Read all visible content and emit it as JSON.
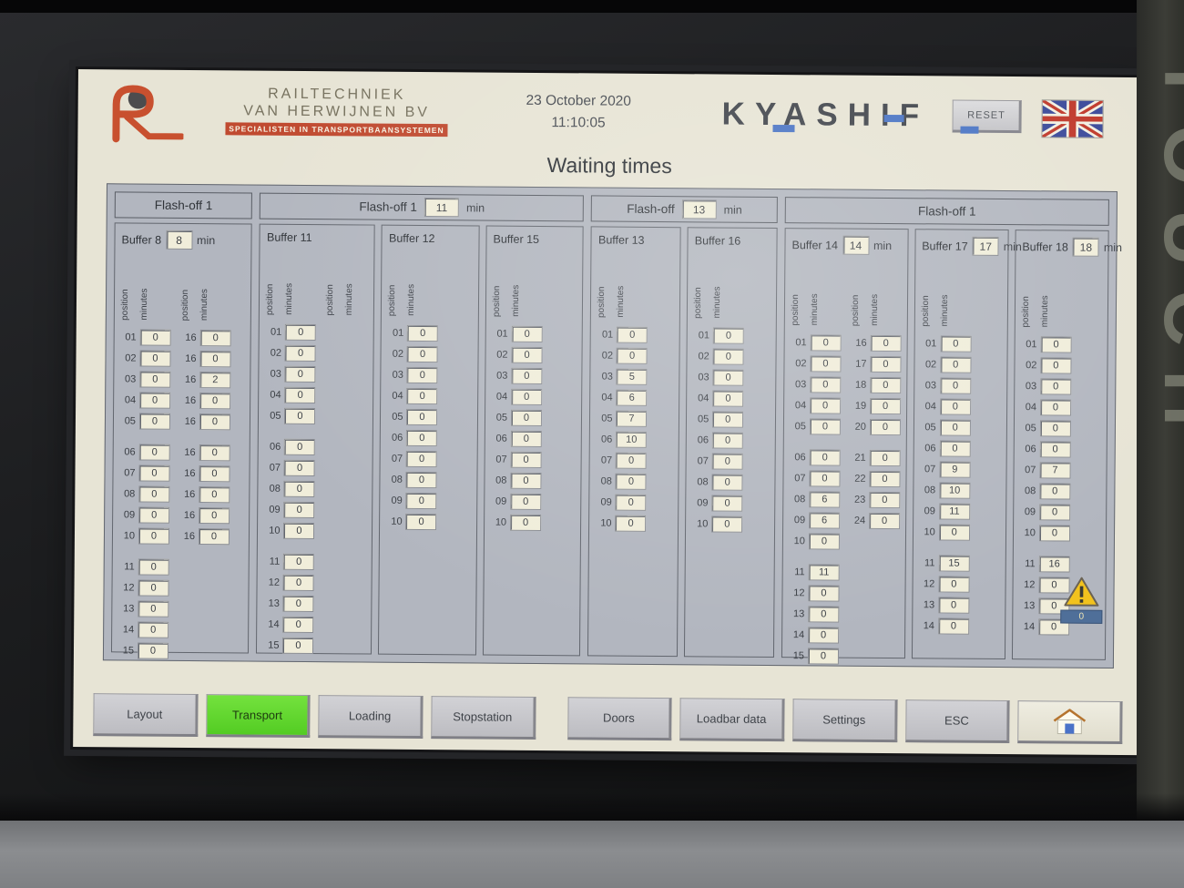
{
  "bezel": {
    "touch": "TOUCH"
  },
  "header": {
    "logo": {
      "line1": "RAILTECHNIEK",
      "line2": "VAN HERWIJNEN BV",
      "tagline": "SPECIALISTEN IN TRANSPORTBAANSYSTEMEN"
    },
    "date": "23 October 2020",
    "time": "11:10:05",
    "brand": "KYASHIF",
    "reset_label": "RESET"
  },
  "title": "Waiting times",
  "colors": {
    "active_button_green": "#5ed42c",
    "brand_accent_blue": "#4a74c4",
    "logo_red": "#c04a30",
    "alarm_yellow": "#f2c21e",
    "panel_gray": "#b2b6bf",
    "value_box_cream": "#f0edda"
  },
  "panel": {
    "col_labels": {
      "position": "position",
      "minutes": "minutes"
    },
    "groups": [
      {
        "flash_label": "Flash-off 1",
        "flash_value": null,
        "flash_unit": null,
        "buffers": [
          {
            "name": "Buffer 8",
            "value": "8",
            "unit": "min",
            "columns": [
              {
                "positions": [
                  "01",
                  "02",
                  "03",
                  "04",
                  "05",
                  "06",
                  "07",
                  "08",
                  "09",
                  "10",
                  "11",
                  "12",
                  "13",
                  "14",
                  "15"
                ],
                "minutes": [
                  "0",
                  "0",
                  "0",
                  "0",
                  "0",
                  "0",
                  "0",
                  "0",
                  "0",
                  "0",
                  "0",
                  "0",
                  "0",
                  "0",
                  "0"
                ]
              },
              {
                "positions": [
                  "16",
                  "16",
                  "16",
                  "16",
                  "16",
                  "16",
                  "16",
                  "16",
                  "16",
                  "16"
                ],
                "minutes": [
                  "0",
                  "0",
                  "2",
                  "0",
                  "0",
                  "0",
                  "0",
                  "0",
                  "0",
                  "0"
                ]
              }
            ]
          }
        ]
      },
      {
        "flash_label": "Flash-off 1",
        "flash_value": "11",
        "flash_unit": "min",
        "buffers": [
          {
            "name": "Buffer 11",
            "value": null,
            "unit": null,
            "columns": [
              {
                "positions": [
                  "01",
                  "02",
                  "03",
                  "04",
                  "05",
                  "06",
                  "07",
                  "08",
                  "09",
                  "10",
                  "11",
                  "12",
                  "13",
                  "14",
                  "15"
                ],
                "minutes": [
                  "0",
                  "0",
                  "0",
                  "0",
                  "0",
                  "0",
                  "0",
                  "0",
                  "0",
                  "0",
                  "0",
                  "0",
                  "0",
                  "0",
                  "0"
                ]
              },
              {
                "empty": true
              }
            ]
          },
          {
            "name": "Buffer 12",
            "value": null,
            "unit": null,
            "columns": [
              {
                "positions": [
                  "01",
                  "02",
                  "03",
                  "04",
                  "05",
                  "06",
                  "07",
                  "08",
                  "09",
                  "10"
                ],
                "minutes": [
                  "0",
                  "0",
                  "0",
                  "0",
                  "0",
                  "0",
                  "0",
                  "0",
                  "0",
                  "0"
                ]
              }
            ]
          },
          {
            "name": "Buffer 15",
            "value": null,
            "unit": null,
            "columns": [
              {
                "positions": [
                  "01",
                  "02",
                  "03",
                  "04",
                  "05",
                  "06",
                  "07",
                  "08",
                  "09",
                  "10"
                ],
                "minutes": [
                  "0",
                  "0",
                  "0",
                  "0",
                  "0",
                  "0",
                  "0",
                  "0",
                  "0",
                  "0"
                ]
              }
            ]
          }
        ]
      },
      {
        "flash_label": "Flash-off",
        "flash_value": "13",
        "flash_unit": "min",
        "buffers": [
          {
            "name": "Buffer 13",
            "value": null,
            "unit": null,
            "columns": [
              {
                "positions": [
                  "01",
                  "02",
                  "03",
                  "04",
                  "05",
                  "06",
                  "07",
                  "08",
                  "09",
                  "10"
                ],
                "minutes": [
                  "0",
                  "0",
                  "5",
                  "6",
                  "7",
                  "10",
                  "0",
                  "0",
                  "0",
                  "0"
                ]
              }
            ]
          },
          {
            "name": "Buffer 16",
            "value": null,
            "unit": null,
            "columns": [
              {
                "positions": [
                  "01",
                  "02",
                  "03",
                  "04",
                  "05",
                  "06",
                  "07",
                  "08",
                  "09",
                  "10"
                ],
                "minutes": [
                  "0",
                  "0",
                  "0",
                  "0",
                  "0",
                  "0",
                  "0",
                  "0",
                  "0",
                  "0"
                ]
              }
            ]
          }
        ]
      },
      {
        "flash_label": "Flash-off 1",
        "flash_value": null,
        "flash_unit": null,
        "buffers": [
          {
            "name": "Buffer 14",
            "value": "14",
            "unit": "min",
            "columns": [
              {
                "positions": [
                  "01",
                  "02",
                  "03",
                  "04",
                  "05",
                  "06",
                  "07",
                  "08",
                  "09",
                  "10",
                  "11",
                  "12",
                  "13",
                  "14",
                  "15"
                ],
                "minutes": [
                  "0",
                  "0",
                  "0",
                  "0",
                  "0",
                  "0",
                  "0",
                  "6",
                  "6",
                  "0",
                  "11",
                  "0",
                  "0",
                  "0",
                  "0"
                ]
              },
              {
                "positions": [
                  "16",
                  "17",
                  "18",
                  "19",
                  "20",
                  "21",
                  "22",
                  "23",
                  "24"
                ],
                "minutes": [
                  "0",
                  "0",
                  "0",
                  "0",
                  "0",
                  "0",
                  "0",
                  "0",
                  "0"
                ]
              }
            ]
          },
          {
            "name": "Buffer 17",
            "value": "17",
            "unit": "min",
            "columns": [
              {
                "positions": [
                  "01",
                  "02",
                  "03",
                  "04",
                  "05",
                  "06",
                  "07",
                  "08",
                  "09",
                  "10",
                  "11",
                  "12",
                  "13",
                  "14"
                ],
                "minutes": [
                  "0",
                  "0",
                  "0",
                  "0",
                  "0",
                  "0",
                  "9",
                  "10",
                  "11",
                  "0",
                  "15",
                  "0",
                  "0",
                  "0"
                ]
              }
            ]
          },
          {
            "name": "Buffer 18",
            "value": "18",
            "unit": "min",
            "columns": [
              {
                "positions": [
                  "01",
                  "02",
                  "03",
                  "04",
                  "05",
                  "06",
                  "07",
                  "08",
                  "09",
                  "10",
                  "11",
                  "12",
                  "13",
                  "14"
                ],
                "minutes": [
                  "0",
                  "0",
                  "0",
                  "0",
                  "0",
                  "0",
                  "7",
                  "0",
                  "0",
                  "0",
                  "16",
                  "0",
                  "0",
                  "0"
                ]
              }
            ]
          }
        ]
      }
    ]
  },
  "alarm": {
    "count": "0"
  },
  "nav": {
    "buttons": [
      {
        "label": "Layout"
      },
      {
        "label": "Transport",
        "active": true
      },
      {
        "label": "Loading"
      },
      {
        "label": "Stopstation"
      },
      {
        "label": "Doors"
      },
      {
        "label": "Loadbar data"
      },
      {
        "label": "Settings"
      },
      {
        "label": "ESC"
      },
      {
        "icon": "home-icon"
      }
    ]
  }
}
